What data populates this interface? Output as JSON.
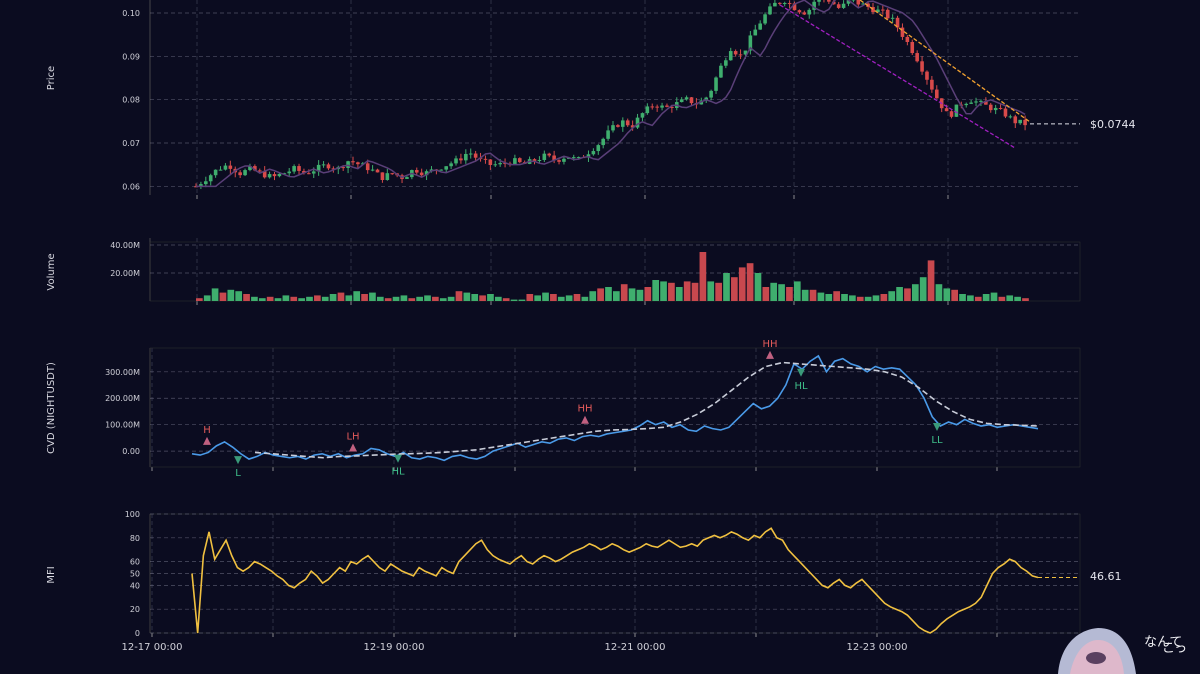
{
  "panels": {
    "price": {
      "ylabel": "Price",
      "ticks": [
        "0.06",
        "0.07",
        "0.08",
        "0.09",
        "0.10"
      ],
      "last_label": "$0.0744",
      "last_value": 0.0744
    },
    "volume": {
      "ylabel": "Volume",
      "ticks": [
        "20.00M",
        "40.00M"
      ]
    },
    "cvd": {
      "ylabel": "CVD (NIGHTUSDT)",
      "ticks": [
        "0.00",
        "100.00M",
        "200.00M",
        "300.00M"
      ]
    },
    "mfi": {
      "ylabel": "MFI",
      "ticks": [
        "0",
        "20",
        "40",
        "50",
        "60",
        "80",
        "100"
      ],
      "last_label": "46.61",
      "last_value": 46.61
    }
  },
  "x_ticks": [
    "12-17 00:00",
    "12-19 00:00",
    "12-21 00:00",
    "12-23 00:00"
  ],
  "watermark": {
    "text1": "こっ",
    "text2": "なんて"
  },
  "chart_data": [
    {
      "type": "candlestick",
      "ylabel": "Price",
      "ylim": [
        0.058,
        0.103
      ],
      "grid": true,
      "up_color": "#3fae6e",
      "down_color": "#d84a4a",
      "close_approx": [
        0.06,
        0.062,
        0.064,
        0.065,
        0.063,
        0.064,
        0.063,
        0.062,
        0.063,
        0.064,
        0.063,
        0.064,
        0.065,
        0.064,
        0.066,
        0.065,
        0.064,
        0.062,
        0.063,
        0.062,
        0.064,
        0.063,
        0.064,
        0.065,
        0.066,
        0.068,
        0.066,
        0.065,
        0.065,
        0.066,
        0.065,
        0.066,
        0.067,
        0.066,
        0.067,
        0.066,
        0.068,
        0.07,
        0.073,
        0.075,
        0.074,
        0.077,
        0.079,
        0.078,
        0.079,
        0.08,
        0.079,
        0.081,
        0.087,
        0.092,
        0.09,
        0.095,
        0.099,
        0.102,
        0.103,
        0.101,
        0.1,
        0.104,
        0.103,
        0.101,
        0.103,
        0.102,
        0.101,
        0.1,
        0.098,
        0.094,
        0.09,
        0.085,
        0.08,
        0.076,
        0.079,
        0.08,
        0.079,
        0.078,
        0.077,
        0.075,
        0.0744
      ],
      "trendlines": [
        {
          "color": "#f0a030",
          "style": "dashed"
        },
        {
          "color": "#a020c0",
          "style": "dashed"
        }
      ]
    },
    {
      "type": "bar",
      "ylabel": "Volume",
      "ylim": [
        0,
        45000000
      ],
      "values_m": [
        2,
        4,
        9,
        6,
        8,
        7,
        5,
        3,
        2,
        3,
        2,
        4,
        3,
        2,
        3,
        4,
        3,
        5,
        6,
        4,
        7,
        5,
        6,
        3,
        2,
        3,
        4,
        2,
        3,
        4,
        3,
        2,
        3,
        7,
        6,
        5,
        4,
        5,
        3,
        2,
        1,
        1,
        5,
        4,
        6,
        5,
        3,
        4,
        5,
        3,
        7,
        9,
        10,
        7,
        12,
        9,
        8,
        10,
        15,
        14,
        13,
        10,
        14,
        13,
        35,
        14,
        13,
        20,
        17,
        24,
        27,
        20,
        10,
        13,
        12,
        10,
        14,
        8,
        8,
        6,
        5,
        7,
        5,
        4,
        3,
        3,
        4,
        5,
        7,
        10,
        9,
        12,
        17,
        29,
        12,
        9,
        8,
        5,
        4,
        3,
        5,
        6,
        3,
        4,
        3,
        2
      ],
      "grid": true
    },
    {
      "type": "line",
      "ylabel": "CVD (NIGHTUSDT)",
      "ylim": [
        -60000000,
        390000000
      ],
      "series_cvd_m": [
        -10,
        -15,
        -5,
        20,
        35,
        15,
        -10,
        -30,
        -20,
        -5,
        -15,
        -20,
        -25,
        -20,
        -30,
        -15,
        -10,
        -20,
        -10,
        -25,
        -15,
        -10,
        10,
        5,
        -10,
        -20,
        -5,
        -25,
        -30,
        -20,
        -25,
        -35,
        -20,
        -15,
        -25,
        -30,
        -20,
        0,
        10,
        20,
        30,
        15,
        25,
        35,
        30,
        45,
        50,
        40,
        55,
        60,
        55,
        65,
        70,
        75,
        80,
        95,
        115,
        100,
        110,
        90,
        100,
        80,
        75,
        95,
        85,
        80,
        90,
        120,
        150,
        180,
        160,
        170,
        200,
        250,
        330,
        310,
        340,
        360,
        300,
        340,
        350,
        330,
        320,
        300,
        320,
        310,
        315,
        310,
        280,
        250,
        200,
        130,
        95,
        110,
        100,
        120,
        105,
        95,
        100,
        90,
        95,
        100,
        95,
        90,
        85
      ],
      "series_ma_m": [
        -5,
        -10,
        -15,
        -20,
        -25,
        -20,
        -18,
        -15,
        -12,
        -10,
        -8,
        -5,
        0,
        5,
        15,
        25,
        35,
        45,
        55,
        65,
        75,
        80,
        82,
        85,
        90,
        110,
        140,
        180,
        230,
        280,
        320,
        335,
        330,
        325,
        320,
        315,
        310,
        300,
        280,
        240,
        190,
        150,
        120,
        105,
        100,
        98,
        95
      ],
      "pivots": [
        {
          "label": "H",
          "type": "high",
          "value_m": 35
        },
        {
          "label": "L",
          "type": "low",
          "value_m": -30
        },
        {
          "label": "LH",
          "type": "high",
          "value_m": 10
        },
        {
          "label": "HL",
          "type": "low",
          "value_m": -25
        },
        {
          "label": "HH",
          "type": "high",
          "value_m": 115
        },
        {
          "label": "HH",
          "type": "high",
          "value_m": 360
        },
        {
          "label": "HL",
          "type": "low",
          "value_m": 300
        },
        {
          "label": "LL",
          "type": "low",
          "value_m": 95
        }
      ],
      "grid": true
    },
    {
      "type": "line",
      "ylabel": "MFI",
      "ylim": [
        0,
        100
      ],
      "values": [
        50,
        0,
        65,
        85,
        62,
        70,
        78,
        65,
        55,
        52,
        55,
        60,
        58,
        55,
        52,
        48,
        45,
        40,
        38,
        42,
        45,
        52,
        48,
        42,
        45,
        50,
        55,
        52,
        60,
        58,
        62,
        65,
        60,
        55,
        52,
        58,
        55,
        52,
        50,
        48,
        55,
        52,
        50,
        48,
        55,
        52,
        50,
        60,
        65,
        70,
        75,
        78,
        70,
        65,
        62,
        60,
        58,
        62,
        65,
        60,
        58,
        62,
        65,
        63,
        60,
        62,
        65,
        68,
        70,
        72,
        75,
        73,
        70,
        72,
        75,
        73,
        70,
        68,
        70,
        72,
        75,
        73,
        72,
        75,
        78,
        75,
        72,
        73,
        75,
        73,
        78,
        80,
        82,
        80,
        82,
        85,
        83,
        80,
        78,
        82,
        80,
        85,
        88,
        80,
        78,
        70,
        65,
        60,
        55,
        50,
        45,
        40,
        38,
        42,
        45,
        40,
        38,
        42,
        45,
        40,
        35,
        30,
        25,
        22,
        20,
        18,
        15,
        10,
        5,
        2,
        0,
        3,
        8,
        12,
        15,
        18,
        20,
        22,
        25,
        30,
        40,
        50,
        55,
        58,
        62,
        60,
        55,
        52,
        48,
        46.61
      ],
      "grid": true
    }
  ]
}
